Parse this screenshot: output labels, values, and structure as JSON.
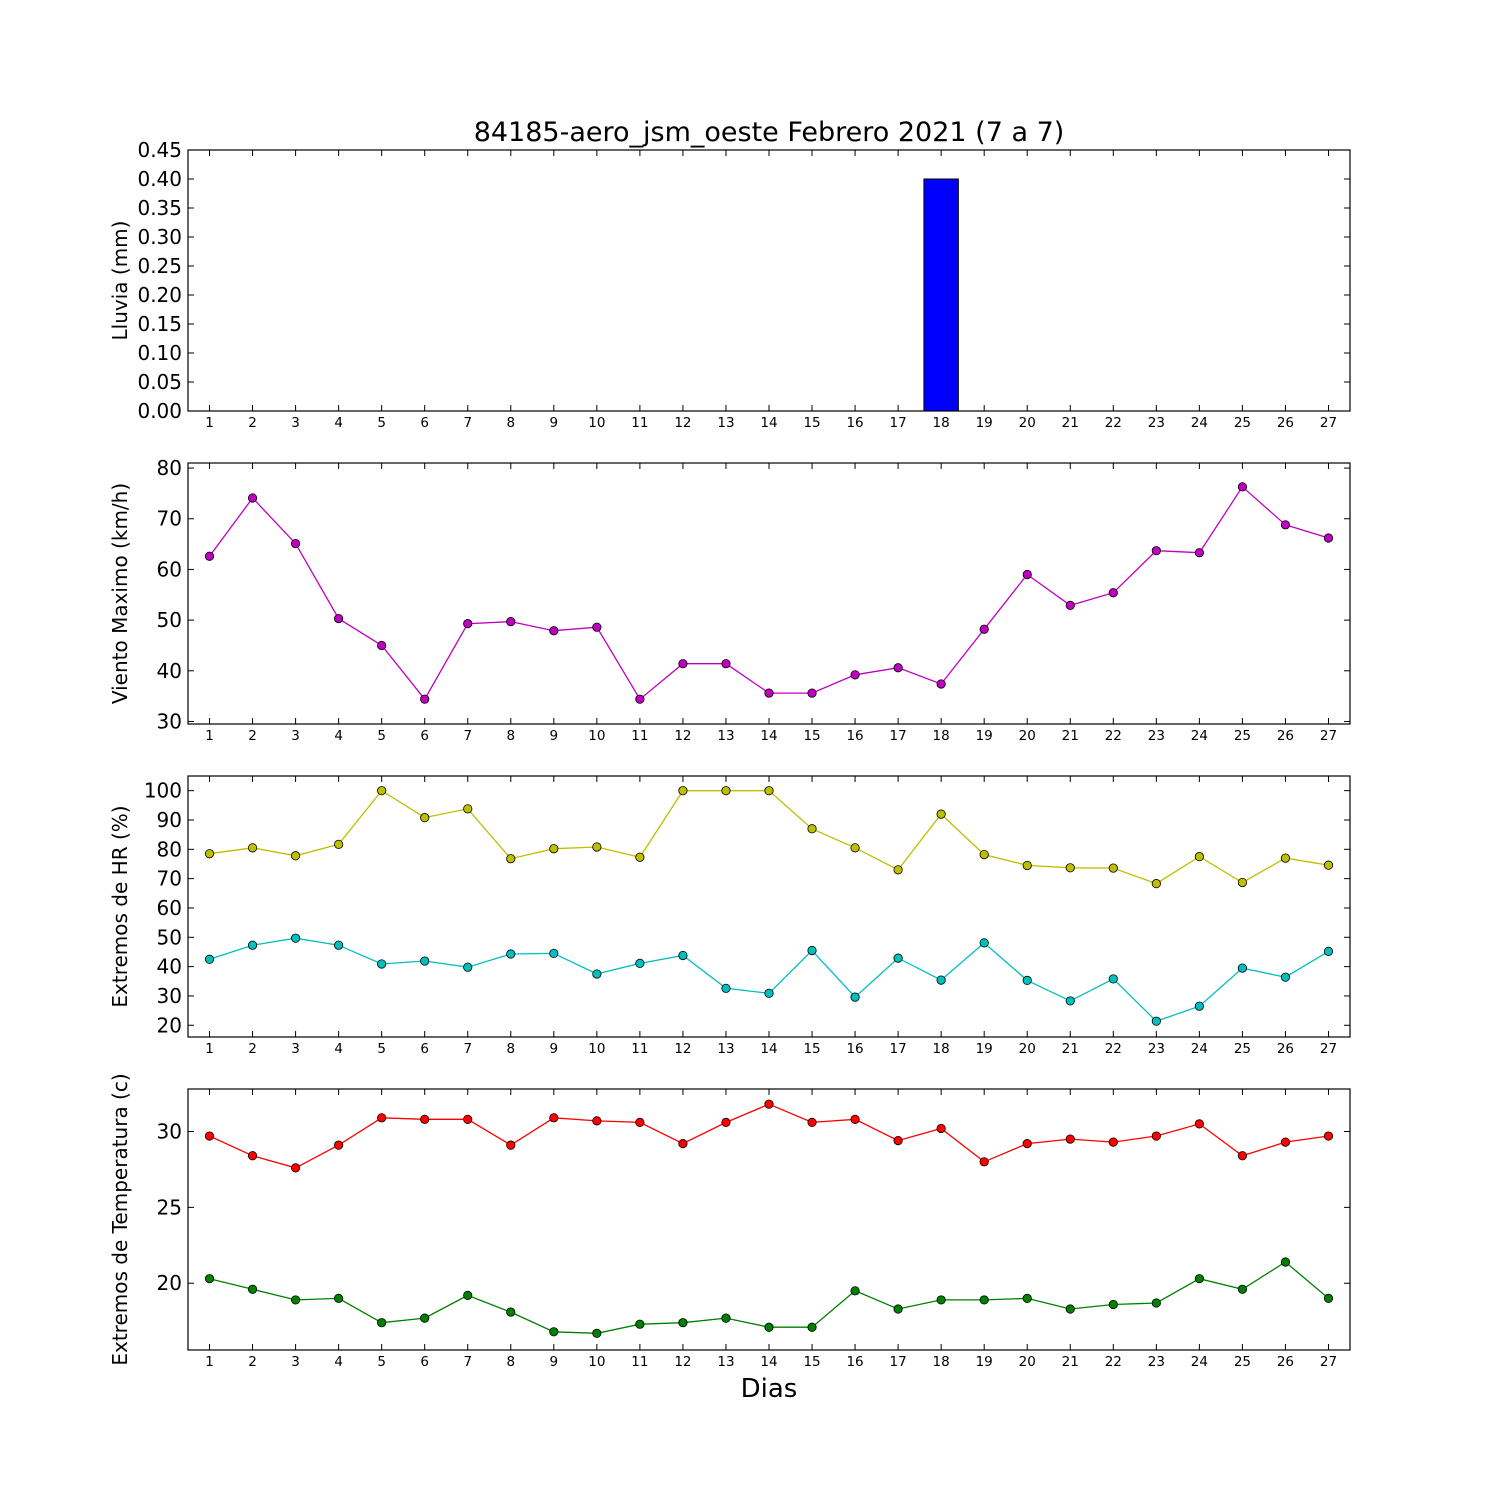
{
  "title": "84185-aero_jsm_oeste Febrero 2021  (7 a 7)",
  "xlabel": "Dias",
  "colors": {
    "bar": "#0000ff",
    "wind": "#bf00bf",
    "hr_max": "#bfbf00",
    "hr_min": "#00bfbf",
    "temp_max": "#ff0000",
    "temp_min": "#008000"
  },
  "chart_data": [
    {
      "type": "bar",
      "ylabel": "Lluvia (mm)",
      "x": [
        1,
        2,
        3,
        4,
        5,
        6,
        7,
        8,
        9,
        10,
        11,
        12,
        13,
        14,
        15,
        16,
        17,
        18,
        19,
        20,
        21,
        22,
        23,
        24,
        25,
        26,
        27
      ],
      "xlim": [
        0.5,
        27.5
      ],
      "ylim": [
        0,
        0.45
      ],
      "yticks": [
        "0.00",
        "0.05",
        "0.10",
        "0.15",
        "0.20",
        "0.25",
        "0.30",
        "0.35",
        "0.40",
        "0.45"
      ],
      "series": [
        {
          "values": [
            0,
            0,
            0,
            0,
            0,
            0,
            0,
            0,
            0,
            0,
            0,
            0,
            0,
            0,
            0,
            0,
            0,
            0.4,
            0,
            0,
            0,
            0,
            0,
            0,
            0,
            0,
            0
          ]
        }
      ]
    },
    {
      "type": "line",
      "ylabel": "Viento Maximo (km/h)",
      "x": [
        1,
        2,
        3,
        4,
        5,
        6,
        7,
        8,
        9,
        10,
        11,
        12,
        13,
        14,
        15,
        16,
        17,
        18,
        19,
        20,
        21,
        22,
        23,
        24,
        25,
        26,
        27
      ],
      "xlim": [
        0.5,
        27.5
      ],
      "ylim": [
        29.5,
        81
      ],
      "yticks": [
        "30",
        "40",
        "50",
        "60",
        "70",
        "80"
      ],
      "series": [
        {
          "values": [
            62.6,
            74.1,
            65.1,
            50.3,
            45.0,
            34.4,
            49.3,
            49.7,
            47.9,
            48.6,
            34.4,
            41.4,
            41.4,
            35.6,
            35.6,
            39.2,
            40.6,
            37.4,
            48.2,
            59.0,
            52.9,
            55.4,
            63.7,
            63.3,
            76.3,
            68.8,
            66.2
          ]
        }
      ]
    },
    {
      "type": "line",
      "ylabel": "Extremos de HR (%)",
      "x": [
        1,
        2,
        3,
        4,
        5,
        6,
        7,
        8,
        9,
        10,
        11,
        12,
        13,
        14,
        15,
        16,
        17,
        18,
        19,
        20,
        21,
        22,
        23,
        24,
        25,
        26,
        27
      ],
      "xlim": [
        0.5,
        27.5
      ],
      "ylim": [
        16,
        105
      ],
      "yticks": [
        "20",
        "30",
        "40",
        "50",
        "60",
        "70",
        "80",
        "90",
        "100"
      ],
      "series": [
        {
          "values": [
            78.5,
            80.5,
            77.8,
            81.7,
            100,
            90.8,
            93.8,
            76.8,
            80.2,
            80.8,
            77.3,
            100,
            100,
            100,
            87,
            80.5,
            73,
            92,
            78.2,
            74.5,
            73.7,
            73.6,
            68.3,
            77.5,
            68.7,
            77,
            74.6
          ]
        },
        {
          "values": [
            42.5,
            47.3,
            49.7,
            47.3,
            40.9,
            41.9,
            39.8,
            44.3,
            44.5,
            37.5,
            41.1,
            43.8,
            32.6,
            30.9,
            45.5,
            29.6,
            42.9,
            35.4,
            48.1,
            35.3,
            28.3,
            35.8,
            21.4,
            26.5,
            39.5,
            36.4,
            45.2
          ]
        }
      ]
    },
    {
      "type": "line",
      "ylabel": "Extremos de Temperatura (c)",
      "x": [
        1,
        2,
        3,
        4,
        5,
        6,
        7,
        8,
        9,
        10,
        11,
        12,
        13,
        14,
        15,
        16,
        17,
        18,
        19,
        20,
        21,
        22,
        23,
        24,
        25,
        26,
        27
      ],
      "xlim": [
        0.5,
        27.5
      ],
      "ylim": [
        15.6,
        32.8
      ],
      "yticks": [
        "20",
        "25",
        "30"
      ],
      "series": [
        {
          "values": [
            29.7,
            28.4,
            27.6,
            29.1,
            30.9,
            30.8,
            30.8,
            29.1,
            30.9,
            30.7,
            30.6,
            29.2,
            30.6,
            31.8,
            30.6,
            30.8,
            29.4,
            30.2,
            28.0,
            29.2,
            29.5,
            29.3,
            29.7,
            30.5,
            28.4,
            29.3,
            29.7
          ]
        },
        {
          "values": [
            20.3,
            19.6,
            18.9,
            19.0,
            17.4,
            17.7,
            19.2,
            18.1,
            16.8,
            16.7,
            17.3,
            17.4,
            17.7,
            17.1,
            17.1,
            19.5,
            18.3,
            18.9,
            18.9,
            19.0,
            18.3,
            18.6,
            18.7,
            20.3,
            19.6,
            21.4,
            19.0
          ]
        }
      ]
    }
  ]
}
